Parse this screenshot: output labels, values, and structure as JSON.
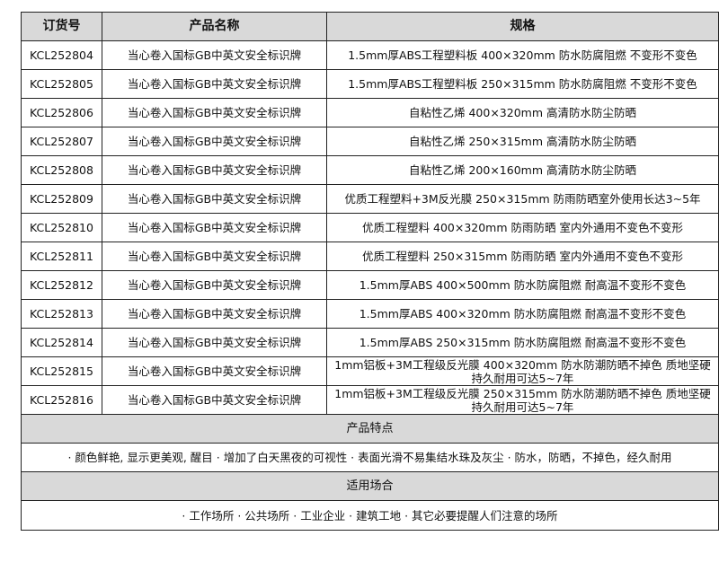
{
  "headers": [
    "订货号",
    "产品名称",
    "规格"
  ],
  "rows": [
    {
      "code": "KCL252804",
      "name": "当心卷入国标GB中英文安全标识牌",
      "spec": "1.5mm厚ABS工程塑料板 400×320mm 防水防腐阻燃 不变形不变色"
    },
    {
      "code": "KCL252805",
      "name": "当心卷入国标GB中英文安全标识牌",
      "spec": "1.5mm厚ABS工程塑料板 250×315mm 防水防腐阻燃 不变形不变色"
    },
    {
      "code": "KCL252806",
      "name": "当心卷入国标GB中英文安全标识牌",
      "spec": "自粘性乙烯 400×320mm 高清防水防尘防晒"
    },
    {
      "code": "KCL252807",
      "name": "当心卷入国标GB中英文安全标识牌",
      "spec": "自粘性乙烯 250×315mm 高清防水防尘防晒"
    },
    {
      "code": "KCL252808",
      "name": "当心卷入国标GB中英文安全标识牌",
      "spec": "自粘性乙烯 200×160mm 高清防水防尘防晒"
    },
    {
      "code": "KCL252809",
      "name": "当心卷入国标GB中英文安全标识牌",
      "spec": "优质工程塑料+3M反光膜 250×315mm 防雨防晒室外使用长达3~5年"
    },
    {
      "code": "KCL252810",
      "name": "当心卷入国标GB中英文安全标识牌",
      "spec": "优质工程塑料 400×320mm 防雨防晒 室内外通用不变色不变形"
    },
    {
      "code": "KCL252811",
      "name": "当心卷入国标GB中英文安全标识牌",
      "spec": "优质工程塑料 250×315mm 防雨防晒 室内外通用不变色不变形"
    },
    {
      "code": "KCL252812",
      "name": "当心卷入国标GB中英文安全标识牌",
      "spec": "1.5mm厚ABS 400×500mm 防水防腐阻燃 耐高温不变形不变色"
    },
    {
      "code": "KCL252813",
      "name": "当心卷入国标GB中英文安全标识牌",
      "spec": "1.5mm厚ABS 400×320mm 防水防腐阻燃 耐高温不变形不变色"
    },
    {
      "code": "KCL252814",
      "name": "当心卷入国标GB中英文安全标识牌",
      "spec": "1.5mm厚ABS 250×315mm 防水防腐阻燃 耐高温不变形不变色"
    },
    {
      "code": "KCL252815",
      "name": "当心卷入国标GB中英文安全标识牌",
      "spec": "1mm铝板+3M工程级反光膜 400×320mm 防水防潮防晒不掉色 质地坚硬 持久耐用可达5~7年"
    },
    {
      "code": "KCL252816",
      "name": "当心卷入国标GB中英文安全标识牌",
      "spec": "1mm铝板+3M工程级反光膜 250×315mm 防水防潮防晒不掉色 质地坚硬 持久耐用可达5~7年"
    }
  ],
  "features": {
    "title": "产品特点",
    "text": "· 颜色鲜艳, 显示更美观, 醒目 · 增加了白天黑夜的可视性 · 表面光滑不易集结水珠及灰尘 · 防水，防晒，不掉色，经久耐用"
  },
  "usage": {
    "title": "适用场合",
    "text": "· 工作场所 · 公共场所 · 工业企业 · 建筑工地 · 其它必要提醒人们注意的场所"
  }
}
